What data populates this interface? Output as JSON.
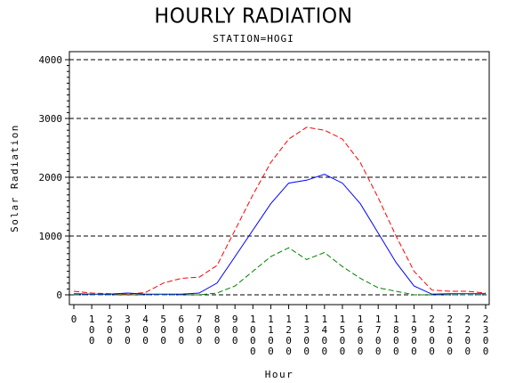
{
  "title": "HOURLY RADIATION",
  "subtitle": "STATION=HOGI",
  "chart_data": {
    "type": "line",
    "xlabel": "Hour",
    "ylabel": "Solar Radiation",
    "ylim": [
      0,
      4000
    ],
    "yticks": [
      0,
      1000,
      2000,
      3000,
      4000
    ],
    "y_tick_labels": [
      "0",
      "1000",
      "2000",
      "3000",
      "4000"
    ],
    "x": [
      0,
      100,
      200,
      300,
      400,
      500,
      600,
      700,
      800,
      900,
      1000,
      1100,
      1200,
      1300,
      1400,
      1500,
      1600,
      1700,
      1800,
      1900,
      2000,
      2100,
      2200,
      2300
    ],
    "x_tick_labels": [
      "0",
      "100",
      "200",
      "300",
      "400",
      "500",
      "600",
      "700",
      "800",
      "900",
      "1000",
      "1100",
      "1200",
      "1300",
      "1400",
      "1500",
      "1600",
      "1700",
      "1800",
      "1900",
      "2000",
      "2100",
      "2200",
      "2300"
    ],
    "grid": "horizontal dashed at y ticks",
    "legend": "none",
    "series": [
      {
        "color": "#ff0000",
        "style": "dashed",
        "values": [
          60,
          30,
          20,
          10,
          40,
          200,
          280,
          300,
          500,
          1100,
          1700,
          2250,
          2650,
          2850,
          2800,
          2650,
          2250,
          1650,
          1000,
          400,
          80,
          60,
          60,
          30
        ]
      },
      {
        "color": "#0000ff",
        "style": "solid",
        "values": [
          20,
          10,
          10,
          30,
          10,
          10,
          10,
          30,
          200,
          650,
          1100,
          1550,
          1900,
          1950,
          2050,
          1900,
          1550,
          1050,
          550,
          150,
          10,
          20,
          20,
          20
        ]
      },
      {
        "color": "#008000",
        "style": "dashed",
        "values": [
          0,
          0,
          0,
          0,
          0,
          0,
          0,
          0,
          30,
          150,
          400,
          650,
          800,
          600,
          720,
          480,
          280,
          120,
          60,
          0,
          0,
          0,
          0,
          0
        ]
      }
    ]
  }
}
